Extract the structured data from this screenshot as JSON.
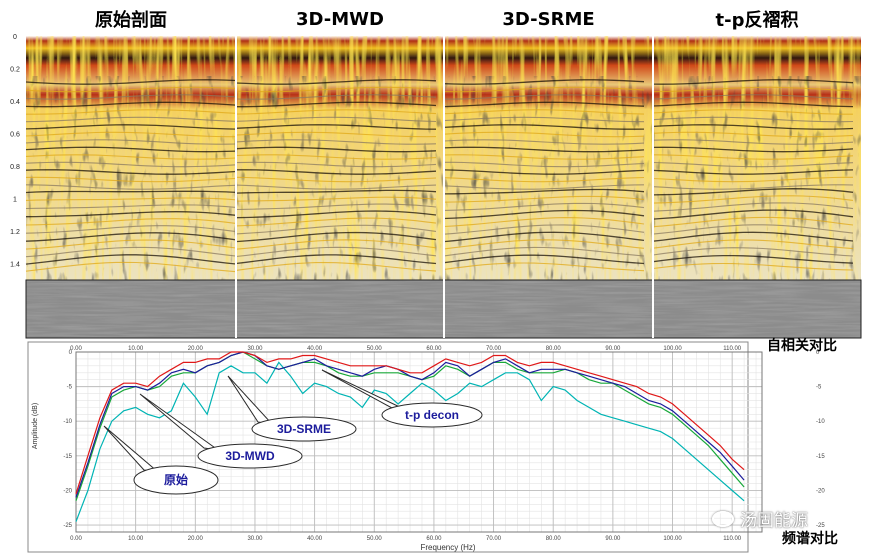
{
  "panels": [
    {
      "title": "原始剖面"
    },
    {
      "title": "3D-MWD"
    },
    {
      "title": "3D-SRME"
    },
    {
      "title": "t-p反褶积"
    }
  ],
  "seismic": {
    "time_ticks": [
      "0",
      "0.2",
      "0.4",
      "0.6",
      "0.8",
      "1",
      "1.2",
      "1.4"
    ],
    "time_values": [
      0,
      0.2,
      0.4,
      0.6,
      0.8,
      1.0,
      1.2,
      1.4
    ],
    "time_range": [
      0,
      1.5
    ]
  },
  "labels": {
    "autocorr": "自相关对比",
    "spectrum": "频谱对比",
    "watermark": "汤固能源"
  },
  "colors": {
    "raw": "#00b4b4",
    "mwd": "#18a83a",
    "srme": "#1c1c9c",
    "tp": "#e01818",
    "seismic_yellow": "#f0c020",
    "seismic_red": "#b03018"
  },
  "chart_data": {
    "type": "line",
    "xlabel": "Frequency (Hz)",
    "ylabel": "Amplitude (dB)",
    "xlim": [
      0,
      115
    ],
    "ylim": [
      -26,
      0
    ],
    "x_ticks": [
      "0.00",
      "10.00",
      "20.00",
      "30.00",
      "40.00",
      "50.00",
      "60.00",
      "70.00",
      "80.00",
      "90.00",
      "100.00",
      "110.00"
    ],
    "x_tick_values": [
      0,
      10,
      20,
      30,
      40,
      50,
      60,
      70,
      80,
      90,
      100,
      110
    ],
    "y_ticks": [
      "0",
      "-5",
      "-10",
      "-15",
      "-20",
      "-25"
    ],
    "y_tick_values": [
      0,
      -5,
      -10,
      -15,
      -20,
      -25
    ],
    "grid": true,
    "x": [
      0,
      2,
      4,
      6,
      8,
      10,
      12,
      14,
      16,
      18,
      20,
      22,
      24,
      26,
      28,
      30,
      32,
      34,
      36,
      38,
      40,
      42,
      44,
      46,
      48,
      50,
      52,
      54,
      56,
      58,
      60,
      62,
      64,
      66,
      68,
      70,
      72,
      74,
      76,
      78,
      80,
      82,
      84,
      86,
      88,
      90,
      92,
      94,
      96,
      98,
      100,
      102,
      104,
      106,
      108,
      110,
      112
    ],
    "series": [
      {
        "name": "原始",
        "color": "#00b4b4",
        "values": [
          -24.5,
          -20,
          -14,
          -10,
          -8.5,
          -8,
          -9,
          -9.5,
          -8.5,
          -4.5,
          -6.5,
          -9,
          -3,
          -2,
          -3,
          -3,
          -4.5,
          -1.5,
          -3.5,
          -6,
          -4.5,
          -5,
          -6,
          -6.5,
          -8,
          -5.5,
          -6,
          -7.5,
          -6,
          -4.5,
          -5.5,
          -7,
          -6,
          -4.5,
          -5,
          -4,
          -3,
          -3,
          -4,
          -7,
          -5,
          -5.5,
          -7,
          -8,
          -9,
          -9.5,
          -10,
          -10.5,
          -11,
          -11.5,
          -12.5,
          -14,
          -15.5,
          -17,
          -18.5,
          -20,
          -21.5
        ]
      },
      {
        "name": "3D-MWD",
        "color": "#18a83a",
        "values": [
          -21.5,
          -16.5,
          -11,
          -6.5,
          -5.5,
          -5,
          -5.5,
          -5,
          -3.5,
          -3,
          -3,
          -2,
          -1.5,
          -0.5,
          0,
          -1,
          -2,
          -2.5,
          -2,
          -1.5,
          -1.5,
          -2,
          -3,
          -3.5,
          -3.5,
          -3,
          -3,
          -3,
          -3.5,
          -4,
          -3.5,
          -2,
          -2.5,
          -3.5,
          -2.5,
          -1.5,
          -1.5,
          -2.5,
          -3,
          -3,
          -3,
          -2.5,
          -3,
          -4,
          -4.5,
          -4.5,
          -5.5,
          -6.5,
          -7.5,
          -8,
          -9,
          -10.5,
          -12,
          -13.5,
          -15.5,
          -17.5,
          -19.5
        ]
      },
      {
        "name": "3D-SRME",
        "color": "#1c1c9c",
        "values": [
          -21,
          -16,
          -10.5,
          -6,
          -5,
          -5,
          -5.5,
          -4.5,
          -3,
          -2.5,
          -3,
          -2,
          -1.5,
          -0.5,
          0,
          -0.5,
          -2,
          -2.5,
          -2,
          -1.5,
          -1,
          -2,
          -2.5,
          -3,
          -3.5,
          -2.5,
          -2,
          -2.5,
          -3.5,
          -4,
          -3,
          -1.5,
          -2,
          -3.5,
          -2.5,
          -1.5,
          -1,
          -2,
          -3,
          -2.5,
          -2.5,
          -2.5,
          -3,
          -3.5,
          -4,
          -4.5,
          -5,
          -6,
          -7,
          -7.5,
          -8.5,
          -10,
          -11.5,
          -13,
          -14.5,
          -16.5,
          -18.5
        ]
      },
      {
        "name": "t-p decon",
        "color": "#e01818",
        "values": [
          -20.5,
          -15,
          -9.5,
          -5.5,
          -4.5,
          -4.5,
          -5,
          -3.5,
          -2.5,
          -1.5,
          -1.5,
          -1,
          -1,
          0,
          0,
          -0.5,
          -1.5,
          -1,
          -1,
          -0.5,
          -0.5,
          -1,
          -1.5,
          -2,
          -2,
          -2,
          -2,
          -2.5,
          -3,
          -3,
          -2,
          -1,
          -1.5,
          -2,
          -1.5,
          -0.5,
          -0.5,
          -1.5,
          -2,
          -1.5,
          -1.5,
          -2,
          -2.5,
          -3,
          -3.5,
          -4,
          -4.5,
          -5,
          -6,
          -6.5,
          -7.5,
          -9,
          -10.5,
          -12,
          -13.5,
          -15.5,
          -17
        ]
      }
    ],
    "annotations": [
      {
        "text": "t-p decon",
        "color": "#1c1c9c"
      },
      {
        "text": "3D-SRME",
        "color": "#1c1c9c"
      },
      {
        "text": "3D-MWD",
        "color": "#1c1c9c"
      },
      {
        "text": "原始",
        "color": "#1c1c9c"
      }
    ]
  }
}
